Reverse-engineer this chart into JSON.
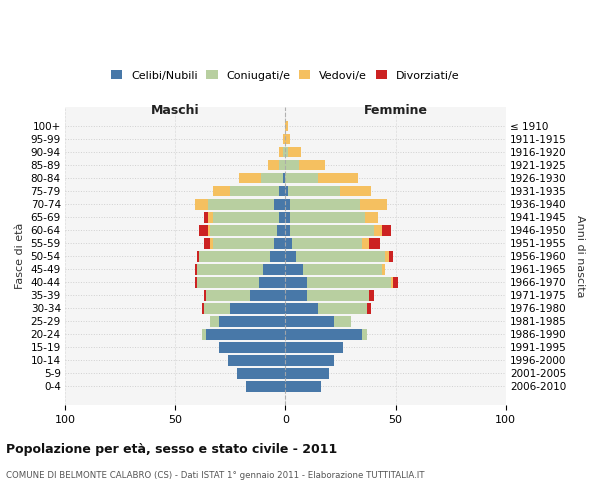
{
  "age_groups": [
    "100+",
    "95-99",
    "90-94",
    "85-89",
    "80-84",
    "75-79",
    "70-74",
    "65-69",
    "60-64",
    "55-59",
    "50-54",
    "45-49",
    "40-44",
    "35-39",
    "30-34",
    "25-29",
    "20-24",
    "15-19",
    "10-14",
    "5-9",
    "0-4"
  ],
  "birth_years": [
    "≤ 1910",
    "1911-1915",
    "1916-1920",
    "1921-1925",
    "1926-1930",
    "1931-1935",
    "1936-1940",
    "1941-1945",
    "1946-1950",
    "1951-1955",
    "1956-1960",
    "1961-1965",
    "1966-1970",
    "1971-1975",
    "1976-1980",
    "1981-1985",
    "1986-1990",
    "1991-1995",
    "1996-2000",
    "2001-2005",
    "2006-2010"
  ],
  "colors": {
    "celibi": "#4878a8",
    "coniugati": "#b8cfa0",
    "vedovi": "#f5c060",
    "divorziati": "#cc2222"
  },
  "maschi": {
    "celibi": [
      0,
      0,
      0,
      0,
      1,
      3,
      5,
      3,
      4,
      5,
      7,
      10,
      12,
      16,
      25,
      30,
      36,
      30,
      26,
      22,
      18
    ],
    "coniugati": [
      0,
      0,
      1,
      3,
      10,
      22,
      30,
      30,
      30,
      28,
      32,
      30,
      28,
      20,
      12,
      4,
      2,
      0,
      0,
      0,
      0
    ],
    "vedovi": [
      0,
      1,
      2,
      5,
      10,
      8,
      6,
      2,
      1,
      1,
      0,
      0,
      0,
      0,
      0,
      0,
      0,
      0,
      0,
      0,
      0
    ],
    "divorziati": [
      0,
      0,
      0,
      0,
      0,
      0,
      0,
      2,
      4,
      3,
      1,
      1,
      1,
      1,
      1,
      0,
      0,
      0,
      0,
      0,
      0
    ]
  },
  "femmine": {
    "celibi": [
      0,
      0,
      0,
      0,
      0,
      1,
      2,
      2,
      2,
      3,
      5,
      8,
      10,
      10,
      15,
      22,
      35,
      26,
      22,
      20,
      16
    ],
    "coniugati": [
      0,
      0,
      1,
      6,
      15,
      24,
      32,
      34,
      38,
      32,
      40,
      36,
      38,
      28,
      22,
      8,
      2,
      0,
      0,
      0,
      0
    ],
    "vedovi": [
      1,
      2,
      6,
      12,
      18,
      14,
      12,
      6,
      4,
      3,
      2,
      1,
      1,
      0,
      0,
      0,
      0,
      0,
      0,
      0,
      0
    ],
    "divorziati": [
      0,
      0,
      0,
      0,
      0,
      0,
      0,
      0,
      4,
      5,
      2,
      0,
      2,
      2,
      2,
      0,
      0,
      0,
      0,
      0,
      0
    ]
  },
  "xlim": 100,
  "title": "Popolazione per età, sesso e stato civile - 2011",
  "subtitle": "COMUNE DI BELMONTE CALABRO (CS) - Dati ISTAT 1° gennaio 2011 - Elaborazione TUTTITALIA.IT",
  "ylabel_left": "Fasce di età",
  "ylabel_right": "Anni di nascita",
  "xlabel_maschi": "Maschi",
  "xlabel_femmine": "Femmine",
  "bg_color": "#f5f5f5",
  "grid_color": "#cccccc"
}
